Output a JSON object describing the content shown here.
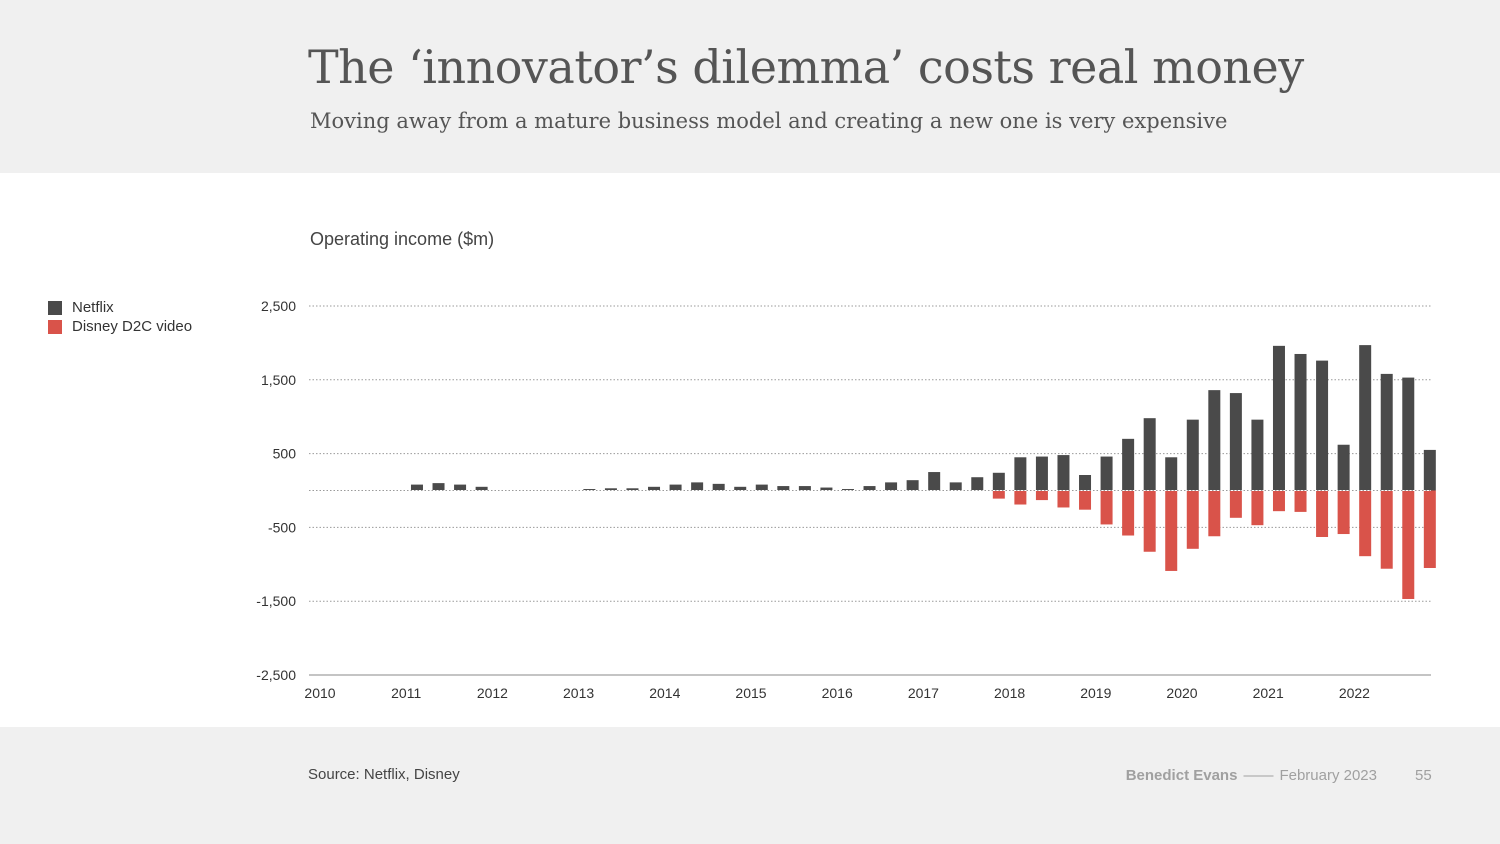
{
  "header": {
    "title": "The ‘innovator’s dilemma’ costs real money",
    "subtitle": "Moving away from a mature business model and creating a new one is very expensive"
  },
  "footer": {
    "source": "Source: Netflix, Disney",
    "author": "Benedict Evans",
    "separator": "——",
    "date": "February 2023",
    "page_number": "55"
  },
  "legend": {
    "items": [
      {
        "label": "Netflix",
        "color": "#4a4a4a"
      },
      {
        "label": "Disney D2C video",
        "color": "#d9534a"
      }
    ]
  },
  "chart_data": {
    "type": "bar",
    "title": "Operating income ($m)",
    "ylim": [
      -2500,
      2500
    ],
    "yticks": [
      2500,
      1500,
      500,
      -500,
      -1500,
      -2500
    ],
    "ytick_labels": [
      "2,500",
      "1,500",
      "500",
      "-500",
      "-1,500",
      "-2,500"
    ],
    "xticks": [
      "2010",
      "2011",
      "2012",
      "2013",
      "2014",
      "2015",
      "2016",
      "2017",
      "2018",
      "2019",
      "2020",
      "2021",
      "2022"
    ],
    "grid": true,
    "legend_position": "left",
    "x_start": "2010 Q1",
    "categories": [
      "2010 Q1",
      "2010 Q2",
      "2010 Q3",
      "2010 Q4",
      "2011 Q1",
      "2011 Q2",
      "2011 Q3",
      "2011 Q4",
      "2012 Q1",
      "2012 Q2",
      "2012 Q3",
      "2012 Q4",
      "2013 Q1",
      "2013 Q2",
      "2013 Q3",
      "2013 Q4",
      "2014 Q1",
      "2014 Q2",
      "2014 Q3",
      "2014 Q4",
      "2015 Q1",
      "2015 Q2",
      "2015 Q3",
      "2015 Q4",
      "2016 Q1",
      "2016 Q2",
      "2016 Q3",
      "2016 Q4",
      "2017 Q1",
      "2017 Q2",
      "2017 Q3",
      "2017 Q4",
      "2018 Q1",
      "2018 Q2",
      "2018 Q3",
      "2018 Q4",
      "2019 Q1",
      "2019 Q2",
      "2019 Q3",
      "2019 Q4",
      "2020 Q1",
      "2020 Q2",
      "2020 Q3",
      "2020 Q4",
      "2021 Q1",
      "2021 Q2",
      "2021 Q3",
      "2021 Q4",
      "2022 Q1",
      "2022 Q2",
      "2022 Q3",
      "2022 Q4"
    ],
    "series": [
      {
        "name": "Netflix",
        "color": "#4a4a4a",
        "values": [
          0,
          0,
          0,
          0,
          80,
          100,
          80,
          50,
          0,
          0,
          0,
          0,
          20,
          30,
          30,
          50,
          80,
          110,
          90,
          50,
          80,
          60,
          60,
          40,
          20,
          60,
          110,
          140,
          250,
          110,
          180,
          240,
          450,
          460,
          480,
          210,
          460,
          700,
          980,
          450,
          960,
          1360,
          1320,
          960,
          1960,
          1850,
          1760,
          620,
          1970,
          1580,
          1530,
          550
        ]
      },
      {
        "name": "Disney D2C video",
        "color": "#d9534a",
        "values": [
          0,
          0,
          0,
          0,
          0,
          0,
          0,
          0,
          0,
          0,
          0,
          0,
          0,
          0,
          0,
          0,
          0,
          0,
          0,
          0,
          0,
          0,
          0,
          0,
          0,
          0,
          0,
          0,
          0,
          0,
          0,
          -110,
          -190,
          -130,
          -230,
          -260,
          -460,
          -610,
          -830,
          -1090,
          -790,
          -620,
          -370,
          -470,
          -280,
          -290,
          -630,
          -590,
          -890,
          -1060,
          -1470,
          -1050
        ]
      }
    ]
  }
}
